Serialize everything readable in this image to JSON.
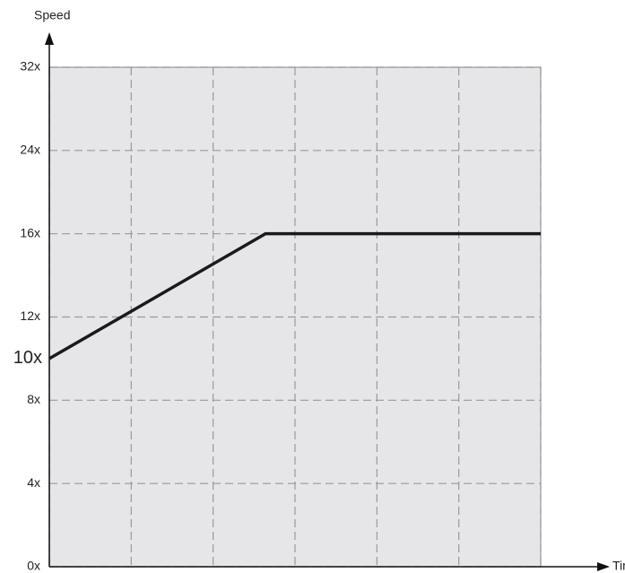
{
  "chart_data": {
    "type": "line",
    "ylabel": "Speed",
    "xlabel": "Time",
    "x": [
      0,
      2.64,
      6
    ],
    "series": [
      {
        "color": "#1a1a1a",
        "values": [
          10,
          16,
          16
        ]
      }
    ],
    "xlim": [
      0,
      6
    ],
    "xticks": [
      0,
      1,
      2,
      3,
      4,
      5,
      6
    ],
    "ylim": [
      0,
      32
    ],
    "yticks": [
      {
        "value": 0,
        "label": "0x"
      },
      {
        "value": 4,
        "label": "4x"
      },
      {
        "value": 8,
        "label": "8x"
      },
      {
        "value": 12,
        "label": "12x"
      },
      {
        "value": 16,
        "label": "16x"
      },
      {
        "value": 24,
        "label": "24x"
      },
      {
        "value": 32,
        "label": "32x"
      }
    ],
    "annotations": [
      {
        "text": "10x",
        "y": 10
      }
    ],
    "grid": true
  }
}
